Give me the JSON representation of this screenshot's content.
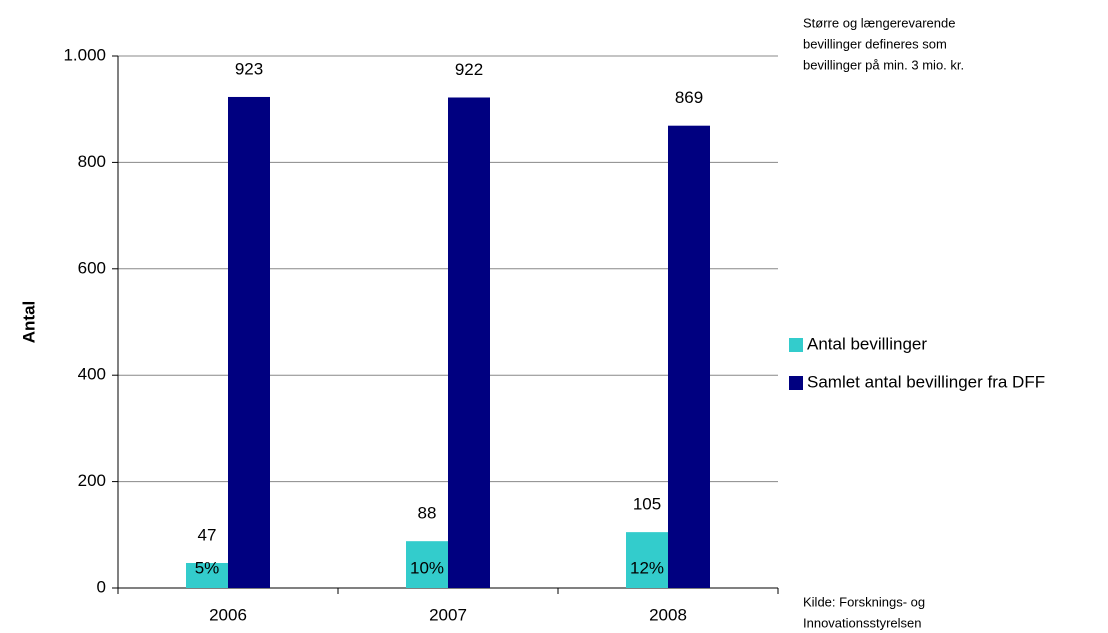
{
  "chart_data": {
    "type": "bar",
    "y_label": "Antal",
    "categories": [
      "2006",
      "2007",
      "2008"
    ],
    "series": [
      {
        "name": "Antal bevillinger",
        "color": "#33cccc",
        "values": [
          47,
          88,
          105
        ],
        "share_labels": [
          "5%",
          "10%",
          "12%"
        ]
      },
      {
        "name": "Samlet antal bevillinger fra DFF",
        "color": "#000080",
        "values": [
          923,
          922,
          869
        ]
      }
    ],
    "ylim": [
      0,
      1000
    ],
    "yticks": [
      0,
      200,
      400,
      600,
      800,
      {
        "value": 1000,
        "label": "1.000"
      }
    ],
    "grid": true,
    "legend": "right",
    "note": [
      "Større og længerevarende",
      "bevillinger defineres som",
      "bevillinger på min. 3 mio. kr."
    ],
    "source": [
      "Kilde: Forsknings- og",
      "Innovationsstyrelsen"
    ]
  }
}
